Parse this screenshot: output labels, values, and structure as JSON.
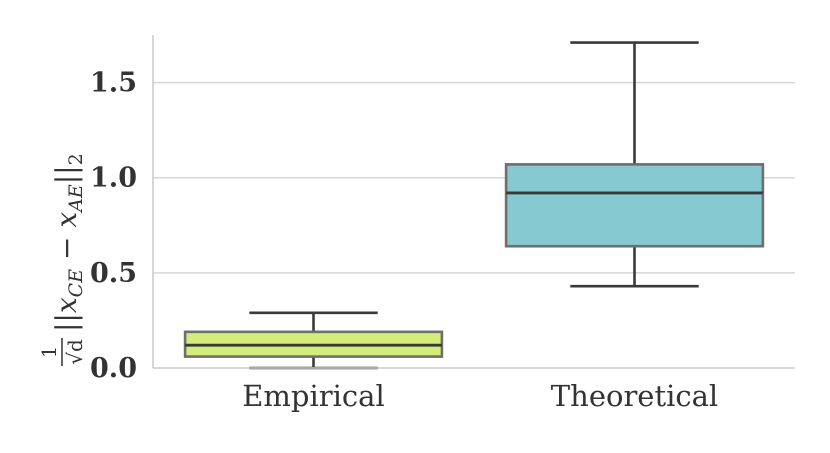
{
  "chart_data": {
    "type": "box",
    "title": "",
    "xlabel": "",
    "ylabel": "1/√d ||x_CE − x_AE||₂",
    "ylabel_parts": {
      "frac_num": "1",
      "frac_den": "√d",
      "norm_expr": "||x",
      "sub1": "CE",
      "minus": " − x",
      "sub2": "AE",
      "close": "||",
      "sub3": "2"
    },
    "categories": [
      "Empirical",
      "Theoretical"
    ],
    "ylim": [
      0,
      1.75
    ],
    "yticks": [
      0.0,
      0.5,
      1.0,
      1.5
    ],
    "ytick_labels": [
      "0.0",
      "0.5",
      "1.0",
      "1.5"
    ],
    "grid": "horizontal",
    "boxes": [
      {
        "category": "Empirical",
        "whisker_low": 0.0,
        "q1": 0.06,
        "median": 0.12,
        "q3": 0.19,
        "whisker_high": 0.29,
        "color": "#d4ec7a"
      },
      {
        "category": "Theoretical",
        "whisker_low": 0.43,
        "q1": 0.64,
        "median": 0.92,
        "q3": 1.07,
        "whisker_high": 1.71,
        "color": "#86c9d1"
      }
    ],
    "colors": {
      "box_edge": "#6e6e6e",
      "line": "#3a3a3a",
      "grid": "#d6d6d6",
      "axis": "#cccccc"
    }
  }
}
